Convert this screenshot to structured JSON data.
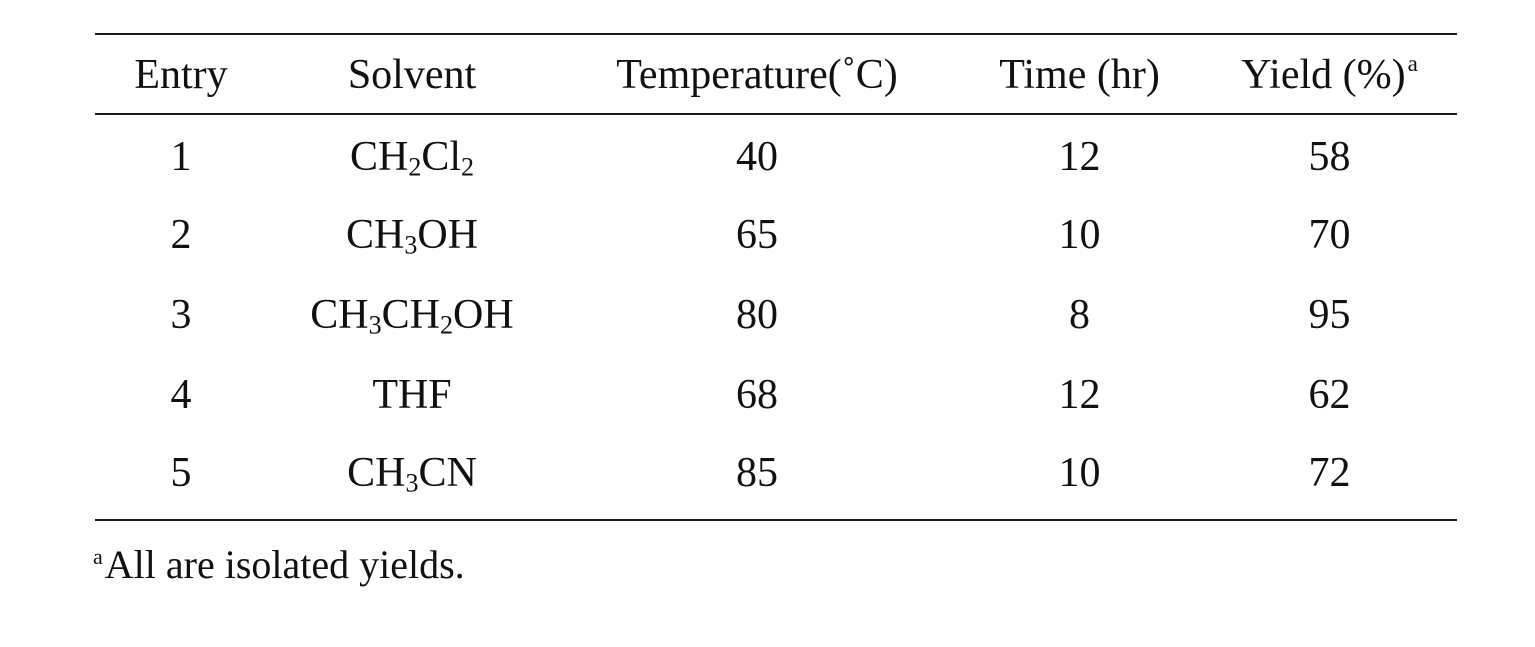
{
  "table": {
    "headers": {
      "entry": "Entry",
      "solvent": "Solvent",
      "temperature": "Temperature(˚C)",
      "time": "Time (hr)",
      "yield": "Yield (%)",
      "yield_superscript": "a"
    },
    "rows": [
      {
        "entry": "1",
        "solvent_parts": [
          "CH",
          "2",
          "Cl",
          "2",
          "",
          "",
          "",
          ""
        ],
        "temperature": "40",
        "time": "12",
        "yield": "58"
      },
      {
        "entry": "2",
        "solvent_parts": [
          "CH",
          "3",
          "OH",
          "",
          "",
          "",
          "",
          ""
        ],
        "temperature": "65",
        "time": "10",
        "yield": "70"
      },
      {
        "entry": "3",
        "solvent_parts": [
          "CH",
          "3",
          "CH",
          "2",
          "OH",
          "",
          "",
          ""
        ],
        "temperature": "80",
        "time": "8",
        "yield": "95"
      },
      {
        "entry": "4",
        "solvent_parts": [
          "THF",
          "",
          "",
          "",
          "",
          "",
          "",
          ""
        ],
        "temperature": "68",
        "time": "12",
        "yield": "62"
      },
      {
        "entry": "5",
        "solvent_parts": [
          "CH",
          "3",
          "CN",
          "",
          "",
          "",
          "",
          ""
        ],
        "temperature": "85",
        "time": "10",
        "yield": "72"
      }
    ]
  },
  "footnote": {
    "marker": "a",
    "text": "All are isolated yields."
  }
}
